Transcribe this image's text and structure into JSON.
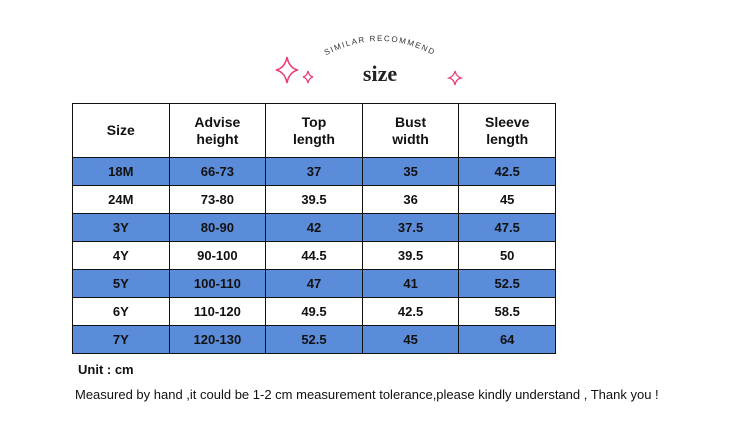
{
  "header": {
    "subtitle": "SIMILAR RECOMMEND",
    "title": "size"
  },
  "table": {
    "columns": [
      "Size",
      "Advise height",
      "Top length",
      "Bust width",
      "Sleeve length"
    ],
    "rows": [
      [
        "18M",
        "66-73",
        "37",
        "35",
        "42.5"
      ],
      [
        "24M",
        "73-80",
        "39.5",
        "36",
        "45"
      ],
      [
        "3Y",
        "80-90",
        "42",
        "37.5",
        "47.5"
      ],
      [
        "4Y",
        "90-100",
        "44.5",
        "39.5",
        "50"
      ],
      [
        "5Y",
        "100-110",
        "47",
        "41",
        "52.5"
      ],
      [
        "6Y",
        "110-120",
        "49.5",
        "42.5",
        "58.5"
      ],
      [
        "7Y",
        "120-130",
        "52.5",
        "45",
        "64"
      ]
    ]
  },
  "notes": {
    "unit": "Unit : cm",
    "tolerance": "Measured by hand ,it could be 1-2 cm measurement tolerance,please kindly understand , Thank you !"
  }
}
